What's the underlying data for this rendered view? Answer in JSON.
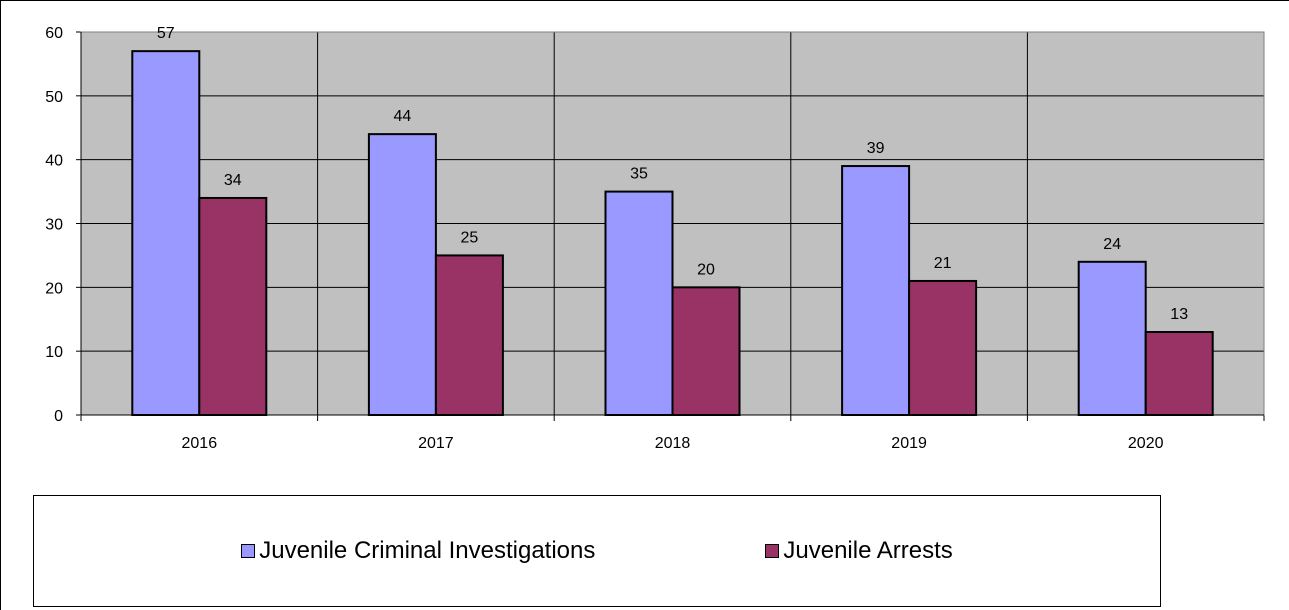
{
  "colors": {
    "plot_bg": "#c0c0c0",
    "series_1": "#9999ff",
    "series_2": "#993366",
    "grid": "#000000"
  },
  "chart_data": {
    "type": "bar",
    "categories": [
      "2016",
      "2017",
      "2018",
      "2019",
      "2020"
    ],
    "series": [
      {
        "name": "Juvenile Criminal Investigations",
        "values": [
          57,
          44,
          35,
          39,
          24
        ]
      },
      {
        "name": "Juvenile Arrests",
        "values": [
          34,
          25,
          20,
          21,
          13
        ]
      }
    ],
    "y_ticks": [
      "0",
      "10",
      "20",
      "30",
      "40",
      "50",
      "60"
    ],
    "ylim": [
      0,
      60
    ],
    "grid": true,
    "legend_position": "bottom"
  }
}
